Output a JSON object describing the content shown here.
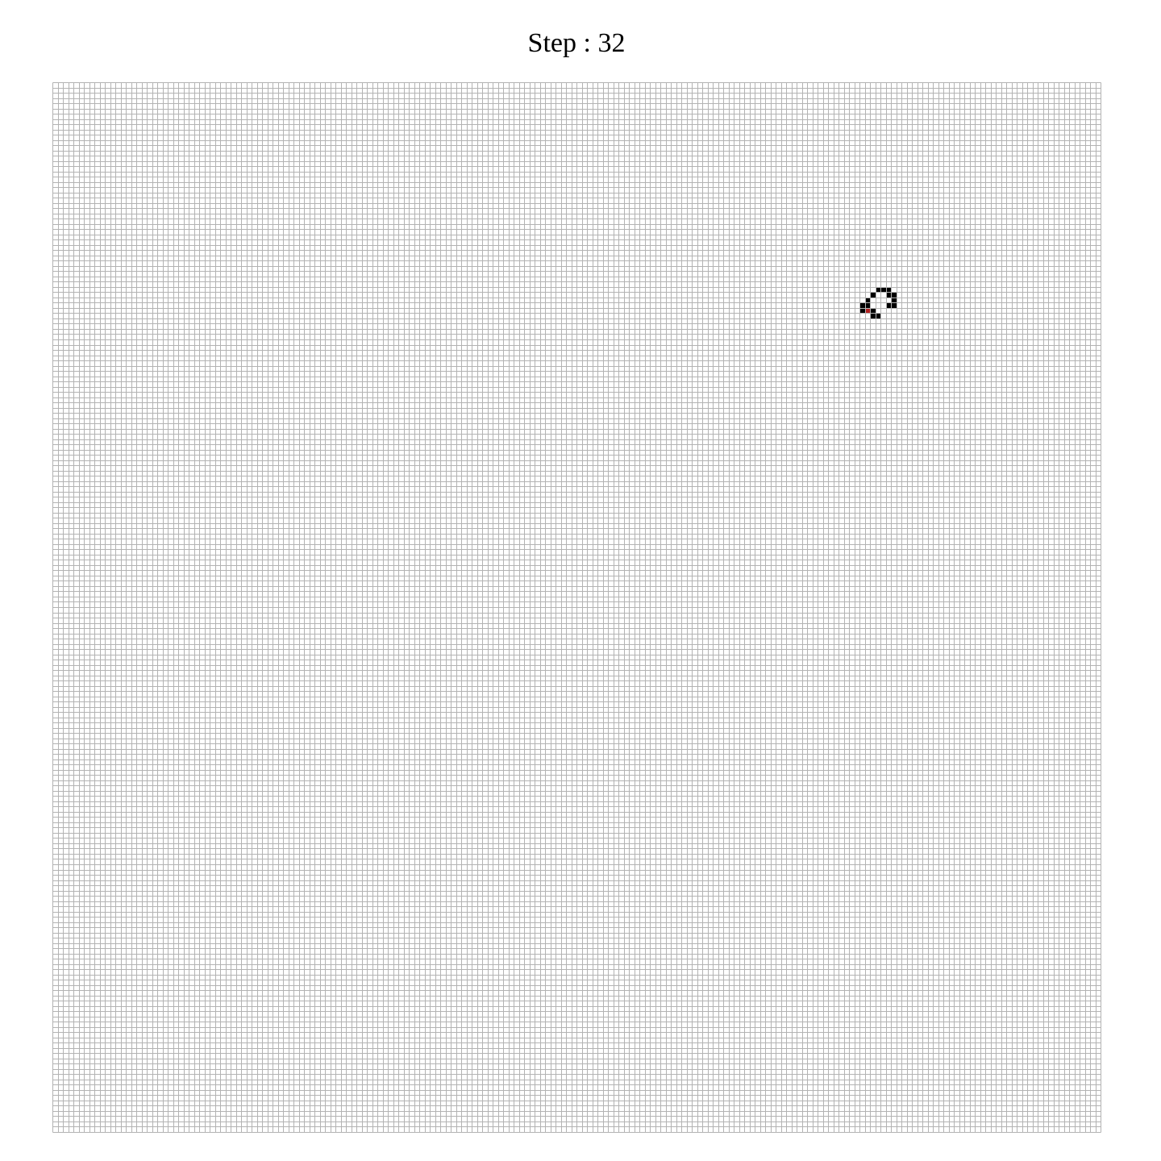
{
  "heading": {
    "label": "Step",
    "separator": " : ",
    "step": 32
  },
  "board": {
    "columns": 200,
    "rows": 200,
    "colors": {
      "background": "#ffffff",
      "grid_line": "#b3b3b3",
      "live_cell": "#000000",
      "ant": "#b22222"
    },
    "live_cells": [
      [
        157,
        39
      ],
      [
        158,
        39
      ],
      [
        159,
        39
      ],
      [
        156,
        40
      ],
      [
        159,
        40
      ],
      [
        160,
        40
      ],
      [
        155,
        41
      ],
      [
        160,
        41
      ],
      [
        154,
        42
      ],
      [
        155,
        42
      ],
      [
        159,
        42
      ],
      [
        160,
        42
      ],
      [
        154,
        43
      ],
      [
        156,
        43
      ],
      [
        156,
        44
      ],
      [
        157,
        44
      ]
    ],
    "ant_cell": [
      155,
      43
    ]
  }
}
